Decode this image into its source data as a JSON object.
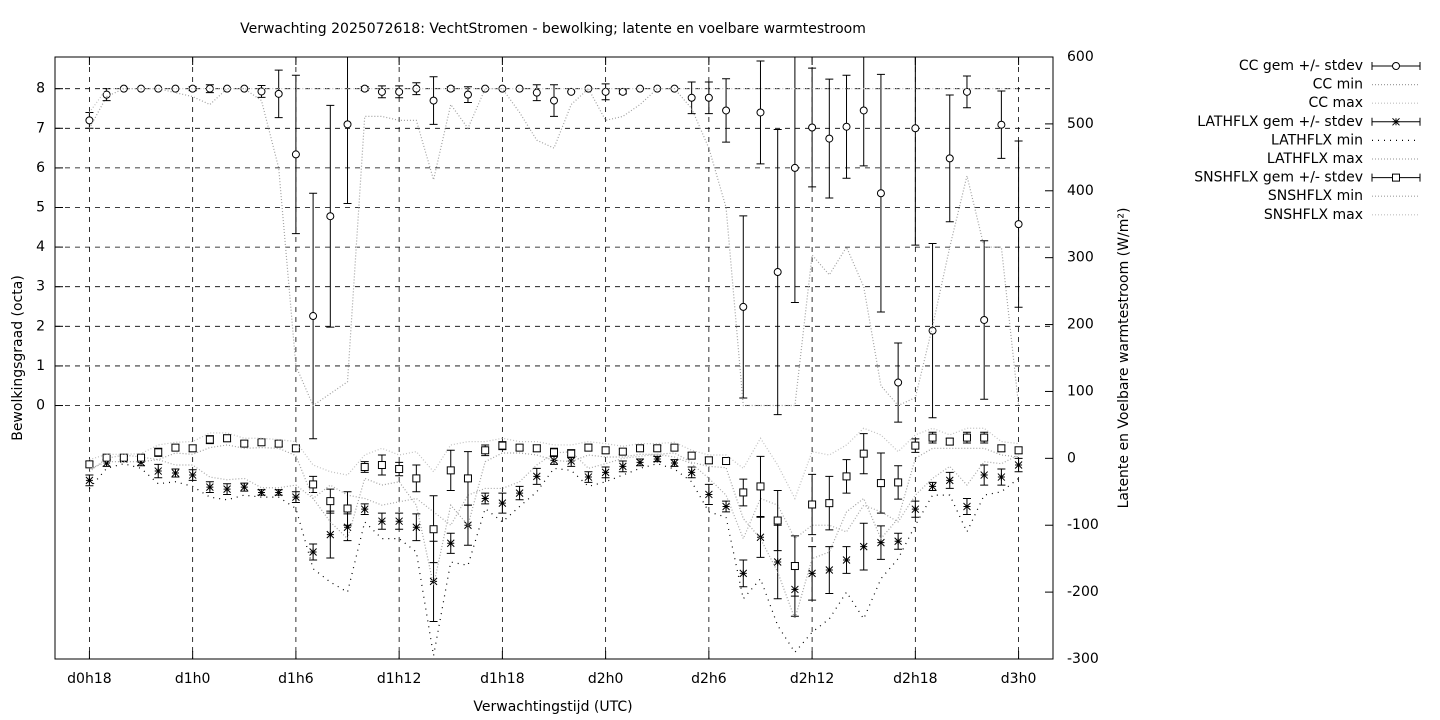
{
  "chart_data": {
    "type": "line",
    "title": "Verwachting 2025072618: VechtStromen - bewolking; latente en voelbare warmtestroom",
    "x_label": "Verwachtingstijd (UTC)",
    "y_label": "Bewolkingsgraad (octa)",
    "y2_label": "Latente en Voelbare warmtestroom (W/m²)",
    "x": [
      18,
      19,
      20,
      21,
      22,
      23,
      24,
      25,
      26,
      27,
      28,
      29,
      30,
      31,
      32,
      33,
      34,
      35,
      36,
      37,
      38,
      39,
      40,
      41,
      42,
      43,
      44,
      45,
      46,
      47,
      48,
      49,
      50,
      51,
      52,
      53,
      54,
      55,
      56,
      57,
      58,
      59,
      60,
      61,
      62,
      63,
      64,
      65,
      66,
      67,
      68,
      69,
      70,
      71,
      72
    ],
    "xlim": [
      16,
      74
    ],
    "xticks": [
      {
        "value": 18,
        "label": "d0h18"
      },
      {
        "value": 24,
        "label": "d1h0"
      },
      {
        "value": 30,
        "label": "d1h6"
      },
      {
        "value": 36,
        "label": "d1h12"
      },
      {
        "value": 42,
        "label": "d1h18"
      },
      {
        "value": 48,
        "label": "d2h0"
      },
      {
        "value": 54,
        "label": "d2h6"
      },
      {
        "value": 60,
        "label": "d2h12"
      },
      {
        "value": 66,
        "label": "d2h18"
      },
      {
        "value": 72,
        "label": "d3h0"
      }
    ],
    "ylim": [
      -6.4,
      8.8
    ],
    "yticks": [
      0,
      1,
      2,
      3,
      4,
      5,
      6,
      7,
      8
    ],
    "y2lim": [
      -300,
      600
    ],
    "y2ticks": [
      -300,
      -200,
      -100,
      0,
      100,
      200,
      300,
      400,
      500,
      600
    ],
    "grid": true,
    "legend": "outside-right-top",
    "series": [
      {
        "name": "CC gem +/- stdev",
        "color": "#000000",
        "marker": "circle",
        "values": [
          7.2,
          7.85,
          8,
          8,
          8,
          8,
          8,
          8,
          8,
          8,
          7.93,
          7.87,
          6.34,
          2.26,
          4.78,
          7.1,
          8,
          7.92,
          7.92,
          8,
          7.7,
          8,
          7.85,
          8,
          8,
          8,
          7.9,
          7.7,
          7.92,
          8,
          7.92,
          7.92,
          8,
          8,
          8,
          7.77,
          7.77,
          7.45,
          2.49,
          7.4,
          3.37,
          6,
          7.02,
          6.74,
          7.04,
          7.45,
          5.36,
          0.58,
          7,
          1.89,
          6.24,
          7.92,
          2.16,
          7.09,
          4.58
        ],
        "errors": [
          0.2,
          0.15,
          0,
          0,
          0,
          0,
          0.05,
          0.1,
          0,
          0,
          0.15,
          0.6,
          2,
          3.1,
          2.8,
          2,
          0.05,
          0.15,
          0.15,
          0.15,
          0.6,
          0.05,
          0.2,
          0,
          0,
          0,
          0.2,
          0.4,
          0,
          0,
          0.2,
          0.05,
          0,
          0,
          0,
          0.4,
          0.4,
          0.8,
          2.3,
          1.3,
          3.6,
          3.4,
          1.5,
          1.5,
          1.3,
          1.4,
          3,
          1,
          2.95,
          2.2,
          1.6,
          0.4,
          2,
          0.85,
          2.1
        ]
      },
      {
        "name": "CC min",
        "color": "#a0a0a0",
        "dash": "1,2",
        "values": [
          7,
          7.8,
          8,
          8,
          8,
          7.9,
          7.8,
          7.6,
          8,
          8,
          7.7,
          6,
          1,
          0,
          0.3,
          0.6,
          7.3,
          7.3,
          7.2,
          7.2,
          5.7,
          7.6,
          7,
          8,
          8,
          7.4,
          6.7,
          6.5,
          7.6,
          8,
          7.2,
          7.3,
          7.6,
          8,
          8,
          7.5,
          6.5,
          5,
          0,
          0,
          0,
          0,
          3.8,
          3.3,
          4,
          3,
          0.5,
          0,
          0.2,
          2,
          4,
          5.8,
          4,
          4,
          0
        ]
      },
      {
        "name": "CC max",
        "color": "#c0c0c0",
        "dash": "1,2",
        "values": [
          7.4,
          8,
          8,
          8,
          8,
          8,
          8,
          8,
          8,
          8,
          8,
          8,
          8,
          8,
          8,
          8,
          8,
          8,
          8,
          8,
          8,
          8,
          8,
          8,
          8,
          8,
          8,
          8,
          8,
          8,
          8,
          8,
          8,
          8,
          8,
          8,
          8,
          8,
          8,
          8,
          8,
          8,
          8,
          8,
          8,
          8,
          8,
          8,
          8,
          8,
          8,
          8,
          8,
          8,
          8
        ]
      },
      {
        "name": "LATHFLX gem +/- stdev",
        "color": "#000000",
        "marker": "asterisk",
        "axis": "y2",
        "values": [
          -33,
          -7,
          -1,
          -6,
          -19,
          -22,
          -25,
          -43,
          -46,
          -43,
          -51,
          -51,
          -58,
          -140,
          -114,
          -103,
          -76,
          -94,
          -94,
          -103,
          -184,
          -127,
          -100,
          -60,
          -67,
          -52,
          -27,
          -3,
          -4,
          -28,
          -21,
          -12,
          -6,
          -1,
          -7,
          -21,
          -54,
          -72,
          -172,
          -118,
          -155,
          -196,
          -172,
          -167,
          -152,
          -132,
          -126,
          -124,
          -76,
          -42,
          -33,
          -72,
          -25,
          -28,
          -10
        ],
        "errors": [
          8,
          5,
          4,
          5,
          10,
          6,
          8,
          8,
          8,
          6,
          4,
          4,
          8,
          12,
          35,
          20,
          8,
          12,
          12,
          20,
          60,
          15,
          30,
          8,
          15,
          10,
          12,
          6,
          8,
          8,
          8,
          8,
          5,
          4,
          5,
          8,
          15,
          8,
          20,
          30,
          55,
          40,
          40,
          35,
          20,
          35,
          25,
          12,
          12,
          6,
          12,
          12,
          15,
          12,
          10
        ]
      },
      {
        "name": "LATHFLX min",
        "color": "#000000",
        "dash": "1,5",
        "axis": "y2",
        "values": [
          -45,
          -15,
          -8,
          -15,
          -38,
          -35,
          -42,
          -58,
          -62,
          -55,
          -58,
          -58,
          -75,
          -165,
          -185,
          -200,
          -95,
          -120,
          -120,
          -140,
          -295,
          -155,
          -160,
          -75,
          -95,
          -72,
          -50,
          -15,
          -18,
          -42,
          -35,
          -25,
          -15,
          -8,
          -16,
          -35,
          -80,
          -88,
          -210,
          -180,
          -250,
          -290,
          -260,
          -240,
          -200,
          -240,
          -180,
          -150,
          -100,
          -55,
          -55,
          -110,
          -55,
          -50,
          -30
        ]
      },
      {
        "name": "LATHFLX max",
        "color": "#a8a8a8",
        "dash": "1,2",
        "axis": "y2",
        "values": [
          -20,
          0,
          5,
          2,
          -2,
          -10,
          -10,
          -28,
          -32,
          -30,
          -44,
          -44,
          -40,
          -60,
          -40,
          -55,
          -60,
          -70,
          -65,
          -60,
          -80,
          -100,
          -55,
          -45,
          -45,
          -35,
          -10,
          8,
          10,
          -15,
          -8,
          0,
          3,
          6,
          2,
          -8,
          -30,
          -55,
          -120,
          -60,
          -70,
          -120,
          -100,
          -100,
          -110,
          -70,
          -80,
          -95,
          -55,
          -30,
          -12,
          -40,
          -5,
          -8,
          5
        ]
      },
      {
        "name": "SNSHFLX gem +/- stdev",
        "color": "#000000",
        "marker": "square",
        "axis": "y2",
        "values": [
          -9,
          1,
          1,
          1,
          9,
          16,
          15,
          28,
          30,
          22,
          24,
          22,
          15,
          -39,
          -64,
          -75,
          -13,
          -10,
          -16,
          -30,
          -106,
          -18,
          -30,
          12,
          19,
          16,
          15,
          9,
          7,
          16,
          12,
          10,
          15,
          15,
          16,
          4,
          -3,
          -4,
          -51,
          -42,
          -93,
          -161,
          -69,
          -67,
          -27,
          7,
          -37,
          -36,
          19,
          31,
          25,
          31,
          31,
          15,
          12
        ],
        "errors": [
          4,
          3,
          3,
          3,
          6,
          4,
          5,
          6,
          5,
          4,
          4,
          4,
          5,
          12,
          18,
          25,
          8,
          15,
          10,
          20,
          50,
          30,
          40,
          8,
          6,
          4,
          5,
          6,
          6,
          5,
          5,
          4,
          4,
          4,
          4,
          5,
          5,
          5,
          20,
          45,
          45,
          45,
          45,
          40,
          25,
          30,
          45,
          25,
          10,
          8,
          5,
          8,
          8,
          5,
          5
        ]
      },
      {
        "name": "SNSHFLX min",
        "color": "#a0a0a0",
        "dash": "1,2",
        "axis": "y2",
        "values": [
          -16,
          -5,
          -5,
          -5,
          -2,
          8,
          6,
          16,
          20,
          15,
          16,
          15,
          4,
          -60,
          -95,
          -120,
          -30,
          -40,
          -35,
          -70,
          -190,
          -70,
          -100,
          -5,
          8,
          8,
          5,
          -3,
          -5,
          5,
          2,
          2,
          6,
          6,
          8,
          -6,
          -12,
          -14,
          -90,
          -120,
          -170,
          -240,
          -150,
          -140,
          -80,
          -60,
          -120,
          -90,
          0,
          15,
          15,
          15,
          15,
          5,
          2
        ]
      },
      {
        "name": "SNSHFLX max",
        "color": "#c0c0c0",
        "dash": "1,2",
        "axis": "y2",
        "values": [
          -2,
          6,
          6,
          7,
          20,
          24,
          25,
          38,
          38,
          30,
          30,
          28,
          25,
          -10,
          -20,
          -25,
          5,
          15,
          5,
          10,
          -20,
          20,
          25,
          25,
          30,
          25,
          25,
          20,
          20,
          25,
          22,
          18,
          22,
          22,
          24,
          12,
          5,
          5,
          -15,
          30,
          -10,
          -60,
          10,
          5,
          20,
          45,
          35,
          10,
          35,
          45,
          35,
          45,
          45,
          25,
          22
        ]
      }
    ]
  }
}
